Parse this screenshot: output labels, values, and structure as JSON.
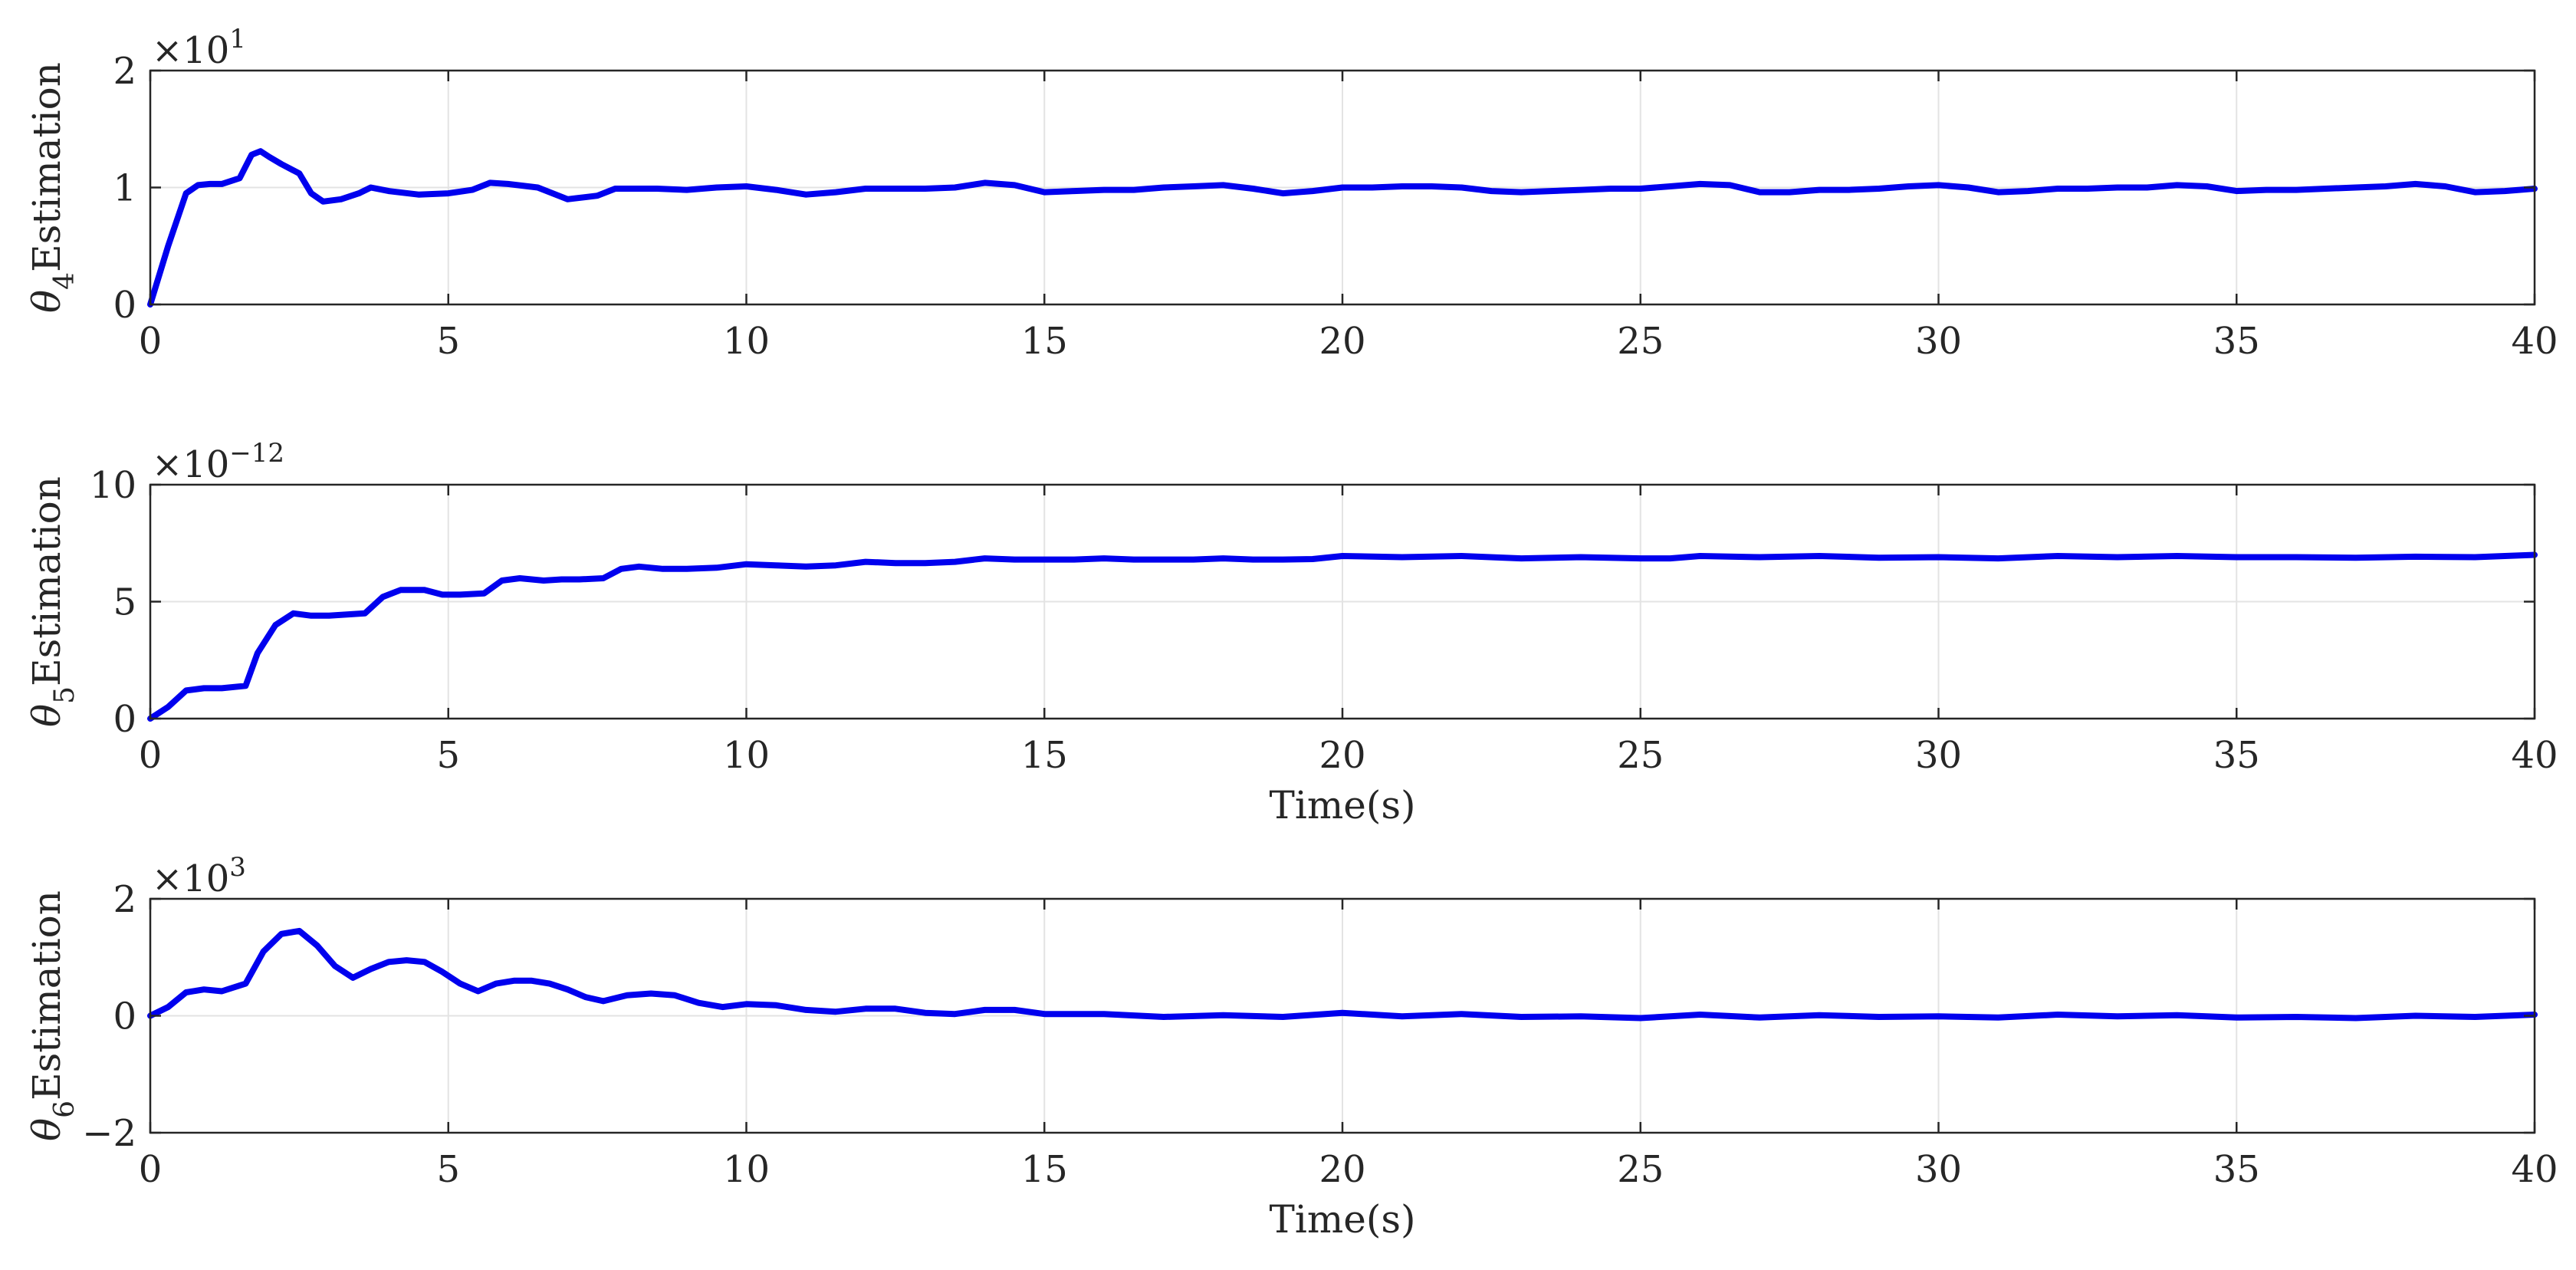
{
  "chart_data": [
    {
      "type": "line",
      "name": "theta4",
      "ylabel_symbol": "θ",
      "ylabel_sub": "4",
      "ylabel_text": "Estimation",
      "xlabel": "",
      "exponent_base": "×10",
      "exponent_power": "1",
      "xlim": [
        0,
        40
      ],
      "ylim": [
        0,
        2
      ],
      "xticks": [
        "0",
        "5",
        "10",
        "15",
        "20",
        "25",
        "30",
        "35",
        "40"
      ],
      "yticks": [
        "0",
        "1",
        "2"
      ],
      "yticks_values": [
        0,
        1,
        2
      ],
      "grid": true,
      "color": "#0000ee",
      "x": [
        0,
        0.3,
        0.6,
        0.8,
        1.0,
        1.2,
        1.5,
        1.7,
        1.85,
        2.0,
        2.2,
        2.5,
        2.7,
        2.9,
        3.2,
        3.5,
        3.7,
        4.0,
        4.5,
        5.0,
        5.4,
        5.7,
        6.0,
        6.5,
        7.0,
        7.5,
        7.8,
        8.5,
        9.0,
        9.5,
        10.0,
        10.5,
        11.0,
        11.5,
        12.0,
        12.5,
        13.0,
        13.5,
        14.0,
        14.5,
        15.0,
        15.5,
        16.0,
        16.5,
        17.0,
        17.5,
        18.0,
        18.5,
        19.0,
        19.5,
        20.0,
        20.5,
        21.0,
        21.5,
        22.0,
        22.5,
        23.0,
        23.5,
        24.0,
        24.5,
        25.0,
        25.5,
        26.0,
        26.5,
        27.0,
        27.5,
        28.0,
        28.5,
        29.0,
        29.5,
        30.0,
        30.5,
        31.0,
        31.5,
        32.0,
        32.5,
        33.0,
        33.5,
        34.0,
        34.5,
        35.0,
        35.5,
        36.0,
        36.5,
        37.0,
        37.5,
        38.0,
        38.5,
        39.0,
        39.5,
        40.0
      ],
      "values": [
        0,
        0.5,
        0.95,
        1.02,
        1.03,
        1.03,
        1.08,
        1.28,
        1.31,
        1.26,
        1.2,
        1.12,
        0.95,
        0.88,
        0.9,
        0.95,
        1.0,
        0.97,
        0.94,
        0.95,
        0.98,
        1.04,
        1.03,
        1.0,
        0.9,
        0.93,
        0.99,
        0.99,
        0.98,
        1.0,
        1.01,
        0.98,
        0.94,
        0.96,
        0.99,
        0.99,
        0.99,
        1.0,
        1.04,
        1.02,
        0.96,
        0.97,
        0.98,
        0.98,
        1.0,
        1.01,
        1.02,
        0.99,
        0.95,
        0.97,
        1.0,
        1.0,
        1.01,
        1.01,
        1.0,
        0.97,
        0.96,
        0.97,
        0.98,
        0.99,
        0.99,
        1.01,
        1.03,
        1.02,
        0.96,
        0.96,
        0.98,
        0.98,
        0.99,
        1.01,
        1.02,
        1.0,
        0.96,
        0.97,
        0.99,
        0.99,
        1.0,
        1.0,
        1.02,
        1.01,
        0.97,
        0.98,
        0.98,
        0.99,
        1.0,
        1.01,
        1.03,
        1.01,
        0.96,
        0.97,
        0.99
      ]
    },
    {
      "type": "line",
      "name": "theta5",
      "ylabel_symbol": "θ",
      "ylabel_sub": "5",
      "ylabel_text": "Estimation",
      "xlabel": "Time(s)",
      "exponent_base": "×10",
      "exponent_power": "−12",
      "xlim": [
        0,
        40
      ],
      "ylim": [
        0,
        10
      ],
      "xticks": [
        "0",
        "5",
        "10",
        "15",
        "20",
        "25",
        "30",
        "35",
        "40"
      ],
      "yticks": [
        "0",
        "5",
        "10"
      ],
      "yticks_values": [
        0,
        5,
        10
      ],
      "grid": true,
      "color": "#0000ee",
      "x": [
        0,
        0.3,
        0.6,
        0.9,
        1.2,
        1.6,
        1.8,
        2.1,
        2.4,
        2.7,
        3.0,
        3.3,
        3.6,
        3.9,
        4.2,
        4.6,
        4.9,
        5.2,
        5.6,
        5.9,
        6.2,
        6.6,
        6.9,
        7.2,
        7.6,
        7.9,
        8.2,
        8.6,
        9.0,
        9.5,
        10.0,
        10.5,
        11.0,
        11.5,
        12.0,
        12.5,
        13.0,
        13.5,
        14.0,
        14.5,
        15.0,
        15.5,
        16.0,
        16.5,
        17.0,
        17.5,
        18.0,
        18.5,
        19.0,
        19.5,
        20.0,
        21.0,
        22.0,
        23.0,
        24.0,
        25.0,
        25.5,
        26.0,
        27.0,
        28.0,
        29.0,
        30.0,
        31.0,
        32.0,
        33.0,
        34.0,
        35.0,
        36.0,
        37.0,
        38.0,
        39.0,
        39.5,
        40.0
      ],
      "values": [
        0,
        0.5,
        1.2,
        1.3,
        1.3,
        1.4,
        2.8,
        4.0,
        4.5,
        4.4,
        4.4,
        4.45,
        4.5,
        5.2,
        5.5,
        5.5,
        5.3,
        5.3,
        5.35,
        5.9,
        6.0,
        5.9,
        5.95,
        5.95,
        6.0,
        6.4,
        6.5,
        6.4,
        6.4,
        6.45,
        6.6,
        6.55,
        6.5,
        6.55,
        6.7,
        6.65,
        6.65,
        6.7,
        6.85,
        6.8,
        6.8,
        6.8,
        6.85,
        6.8,
        6.8,
        6.8,
        6.85,
        6.8,
        6.8,
        6.82,
        6.95,
        6.9,
        6.95,
        6.85,
        6.9,
        6.85,
        6.85,
        6.95,
        6.9,
        6.95,
        6.88,
        6.9,
        6.85,
        6.95,
        6.9,
        6.95,
        6.9,
        6.9,
        6.88,
        6.92,
        6.9,
        6.95,
        7.0
      ]
    },
    {
      "type": "line",
      "name": "theta6",
      "ylabel_symbol": "θ",
      "ylabel_sub": "6",
      "ylabel_text": "Estimation",
      "xlabel": "Time(s)",
      "exponent_base": "×10",
      "exponent_power": "3",
      "xlim": [
        0,
        40
      ],
      "ylim": [
        -2,
        2
      ],
      "xticks": [
        "0",
        "5",
        "10",
        "15",
        "20",
        "25",
        "30",
        "35",
        "40"
      ],
      "yticks": [
        "−2",
        "0",
        "2"
      ],
      "yticks_values": [
        -2,
        0,
        2
      ],
      "grid": true,
      "color": "#0000ee",
      "x": [
        0,
        0.3,
        0.6,
        0.9,
        1.2,
        1.6,
        1.9,
        2.2,
        2.5,
        2.8,
        3.1,
        3.4,
        3.7,
        4.0,
        4.3,
        4.6,
        4.9,
        5.2,
        5.5,
        5.8,
        6.1,
        6.4,
        6.7,
        7.0,
        7.3,
        7.6,
        8.0,
        8.4,
        8.8,
        9.2,
        9.6,
        10.0,
        10.5,
        11.0,
        11.5,
        12.0,
        12.5,
        13.0,
        13.5,
        14.0,
        14.5,
        15.0,
        16.0,
        17.0,
        18.0,
        19.0,
        20.0,
        21.0,
        22.0,
        23.0,
        24.0,
        25.0,
        26.0,
        27.0,
        28.0,
        29.0,
        30.0,
        31.0,
        32.0,
        33.0,
        34.0,
        35.0,
        36.0,
        37.0,
        38.0,
        39.0,
        40.0
      ],
      "values": [
        0,
        0.15,
        0.4,
        0.45,
        0.42,
        0.55,
        1.1,
        1.4,
        1.45,
        1.2,
        0.85,
        0.65,
        0.8,
        0.92,
        0.95,
        0.92,
        0.75,
        0.55,
        0.42,
        0.55,
        0.6,
        0.6,
        0.55,
        0.45,
        0.32,
        0.25,
        0.35,
        0.38,
        0.35,
        0.22,
        0.15,
        0.2,
        0.18,
        0.1,
        0.07,
        0.12,
        0.12,
        0.05,
        0.03,
        0.1,
        0.1,
        0.03,
        0.03,
        -0.02,
        0.01,
        -0.02,
        0.05,
        -0.01,
        0.03,
        -0.02,
        -0.01,
        -0.04,
        0.02,
        -0.03,
        0.01,
        -0.02,
        -0.01,
        -0.03,
        0.02,
        -0.01,
        0.01,
        -0.03,
        -0.02,
        -0.04,
        0.0,
        -0.02,
        0.02
      ]
    }
  ]
}
